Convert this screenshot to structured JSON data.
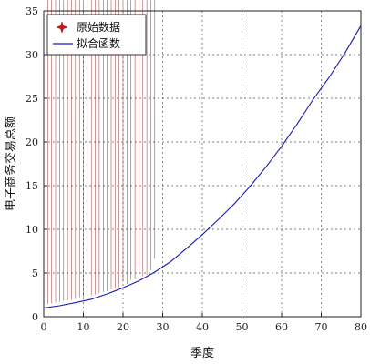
{
  "chart_data": {
    "type": "scatter",
    "xlabel": "季度",
    "ylabel": "电子商务交易总额",
    "xlim": [
      0,
      80
    ],
    "ylim": [
      0,
      35
    ],
    "xticks": [
      0,
      10,
      20,
      30,
      40,
      50,
      60,
      70,
      80
    ],
    "yticks": [
      0,
      5,
      10,
      15,
      20,
      25,
      30,
      35
    ],
    "grid": true,
    "legend_position": "top-left",
    "series": [
      {
        "name": "原始数据",
        "kind": "scatter",
        "color": "#d01515",
        "marker": "star",
        "x": [
          1,
          2,
          3,
          4,
          5,
          6,
          7,
          8,
          9,
          10,
          11,
          12,
          13,
          14,
          15,
          16,
          17,
          18,
          19,
          20,
          21,
          22,
          23,
          24,
          25,
          26,
          27,
          28
        ],
        "y": [
          1.0,
          1.1,
          1.2,
          1.3,
          1.4,
          1.5,
          1.5,
          1.6,
          1.7,
          1.8,
          1.9,
          2.0,
          2.1,
          2.3,
          2.4,
          2.5,
          2.7,
          2.8,
          3.0,
          3.6,
          3.3,
          3.8,
          3.9,
          4.8,
          4.2,
          4.4,
          4.9,
          6.2
        ]
      },
      {
        "name": "拟合函数",
        "kind": "line",
        "color": "#1a1ab0",
        "x": [
          0,
          4,
          8,
          12,
          16,
          20,
          24,
          28,
          32,
          36,
          40,
          44,
          48,
          52,
          56,
          60,
          64,
          68,
          72,
          76,
          80
        ],
        "y": [
          1.0,
          1.25,
          1.6,
          2.0,
          2.6,
          3.3,
          4.1,
          5.1,
          6.3,
          7.8,
          9.4,
          11.1,
          12.9,
          14.9,
          17.1,
          19.5,
          22.1,
          24.9,
          27.4,
          30.2,
          33.3
        ]
      }
    ]
  }
}
